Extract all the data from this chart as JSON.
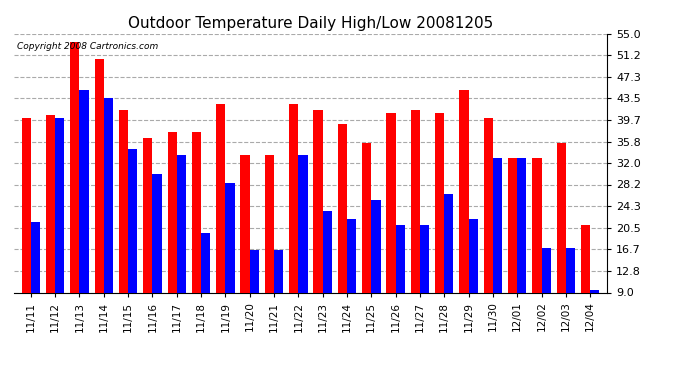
{
  "title": "Outdoor Temperature Daily High/Low 20081205",
  "copyright": "Copyright 2008 Cartronics.com",
  "dates": [
    "11/11",
    "11/12",
    "11/13",
    "11/14",
    "11/15",
    "11/16",
    "11/17",
    "11/18",
    "11/19",
    "11/20",
    "11/21",
    "11/22",
    "11/23",
    "11/24",
    "11/25",
    "11/26",
    "11/27",
    "11/28",
    "11/29",
    "11/30",
    "12/01",
    "12/02",
    "12/03",
    "12/04"
  ],
  "highs": [
    40.0,
    40.5,
    53.5,
    50.5,
    41.5,
    36.5,
    37.5,
    37.5,
    42.5,
    33.5,
    33.5,
    42.5,
    41.5,
    39.0,
    35.5,
    41.0,
    41.5,
    41.0,
    45.0,
    40.0,
    33.0,
    33.0,
    35.5,
    21.0
  ],
  "lows": [
    21.5,
    40.0,
    45.0,
    43.5,
    34.5,
    30.0,
    33.5,
    19.5,
    28.5,
    16.5,
    16.5,
    33.5,
    23.5,
    22.0,
    25.5,
    21.0,
    21.0,
    26.5,
    22.0,
    33.0,
    33.0,
    17.0,
    17.0,
    9.5
  ],
  "yticks": [
    9.0,
    12.8,
    16.7,
    20.5,
    24.3,
    28.2,
    32.0,
    35.8,
    39.7,
    43.5,
    47.3,
    51.2,
    55.0
  ],
  "ymin": 9.0,
  "ymax": 55.0,
  "bar_bottom": 9.0,
  "bar_width": 0.38,
  "high_color": "#FF0000",
  "low_color": "#0000FF",
  "bg_color": "#FFFFFF",
  "grid_color": "#AAAAAA",
  "title_fontsize": 11,
  "copyright_fontsize": 6.5,
  "tick_fontsize": 8
}
